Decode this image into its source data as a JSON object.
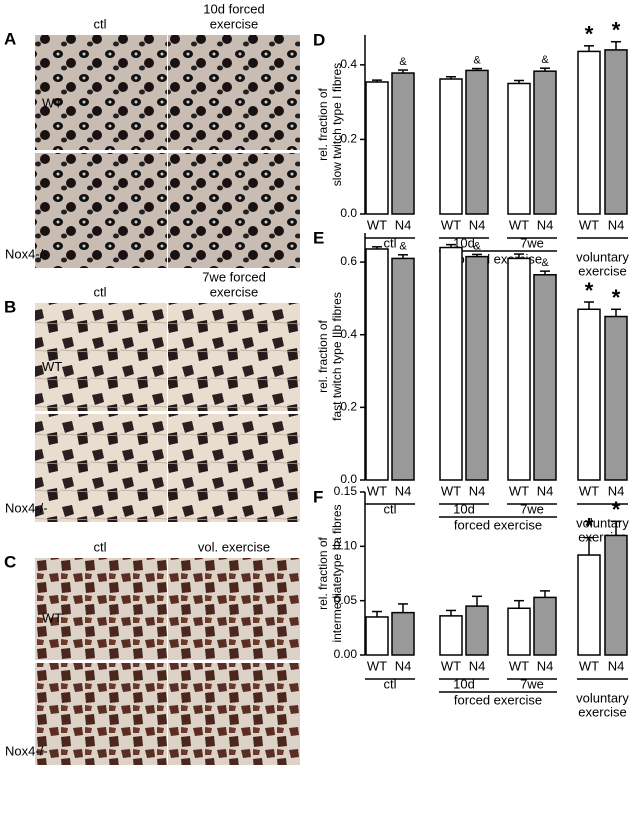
{
  "image_panels": [
    {
      "letter": "A",
      "columns": [
        [
          "ctl"
        ],
        [
          "10d forced",
          "exercise"
        ]
      ],
      "rows": [
        "WT",
        "Nox4-/-"
      ]
    },
    {
      "letter": "B",
      "columns": [
        [
          "ctl"
        ],
        [
          "7we forced",
          "exercise"
        ]
      ],
      "rows": [
        "WT",
        "Nox4-/-"
      ]
    },
    {
      "letter": "C",
      "columns": [
        [
          "ctl"
        ],
        [
          "vol. exercise"
        ]
      ],
      "rows": [
        "WT",
        "Nox4-/-"
      ]
    }
  ],
  "chart_data": [
    {
      "type": "bar",
      "panel": "D",
      "ylabel": [
        "rel. fraction of",
        "slow twitch type I  fibres"
      ],
      "categories": [
        "WT",
        "N4",
        "WT",
        "N4",
        "WT",
        "N4",
        "WT",
        "N4"
      ],
      "values": [
        0.354,
        0.378,
        0.362,
        0.385,
        0.35,
        0.383,
        0.436,
        0.44
      ],
      "errors": [
        0.005,
        0.008,
        0.006,
        0.005,
        0.008,
        0.008,
        0.015,
        0.022
      ],
      "colors": [
        "#ffffff",
        "#999999",
        "#ffffff",
        "#999999",
        "#ffffff",
        "#999999",
        "#ffffff",
        "#999999"
      ],
      "annotations": [
        {
          "index": 1,
          "text": "&"
        },
        {
          "index": 3,
          "text": "&"
        },
        {
          "index": 5,
          "text": "&"
        },
        {
          "index": 6,
          "text": "*"
        },
        {
          "index": 7,
          "text": "*"
        }
      ],
      "groups": [
        {
          "label": [
            "ctl"
          ],
          "bars": [
            0,
            1
          ]
        },
        {
          "label": [
            "10d"
          ],
          "bars": [
            2,
            3
          ]
        },
        {
          "label": [
            "7we"
          ],
          "bars": [
            4,
            5
          ]
        },
        {
          "label": [
            "voluntary",
            "exercise"
          ],
          "bars": [
            6,
            7
          ]
        }
      ],
      "supergroup": {
        "label": "forced exercise",
        "groups": [
          1,
          2
        ]
      },
      "ylim": [
        0,
        0.48
      ],
      "yticks": [
        {
          "value": 0,
          "label": "0.0"
        },
        0.2,
        0.4
      ]
    },
    {
      "type": "bar",
      "panel": "E",
      "ylabel": [
        "rel. fraction of",
        "fast twitch type IIb  fibres"
      ],
      "categories": [
        "WT",
        "N4",
        "WT",
        "N4",
        "WT",
        "N4",
        "WT",
        "N4"
      ],
      "values": [
        0.636,
        0.61,
        0.64,
        0.615,
        0.61,
        0.565,
        0.47,
        0.45
      ],
      "errors": [
        0.006,
        0.01,
        0.008,
        0.006,
        0.012,
        0.01,
        0.02,
        0.02
      ],
      "colors": [
        "#ffffff",
        "#999999",
        "#ffffff",
        "#999999",
        "#ffffff",
        "#999999",
        "#ffffff",
        "#999999"
      ],
      "annotations": [
        {
          "index": 1,
          "text": "&"
        },
        {
          "index": 3,
          "text": "&"
        },
        {
          "index": 5,
          "text": "&"
        },
        {
          "index": 6,
          "text": "*"
        },
        {
          "index": 7,
          "text": "*"
        }
      ],
      "groups": [
        {
          "label": [
            "ctl"
          ],
          "bars": [
            0,
            1
          ]
        },
        {
          "label": [
            "10d"
          ],
          "bars": [
            2,
            3
          ]
        },
        {
          "label": [
            "7we"
          ],
          "bars": [
            4,
            5
          ]
        },
        {
          "label": [
            "voluntary",
            "exercise"
          ],
          "bars": [
            6,
            7
          ]
        }
      ],
      "supergroup": {
        "label": "forced exercise",
        "groups": [
          1,
          2
        ]
      },
      "ylim": [
        0,
        0.68
      ],
      "yticks": [
        {
          "value": 0,
          "label": "0.0"
        },
        0.2,
        0.4,
        0.6
      ]
    },
    {
      "type": "bar",
      "panel": "F",
      "ylabel": [
        "rel. fraction of",
        "intermediatetype IIa  fibres"
      ],
      "categories": [
        "WT",
        "N4",
        "WT",
        "N4",
        "WT",
        "N4",
        "WT",
        "N4"
      ],
      "values": [
        0.035,
        0.039,
        0.036,
        0.045,
        0.043,
        0.053,
        0.092,
        0.11
      ],
      "errors": [
        0.005,
        0.008,
        0.005,
        0.009,
        0.007,
        0.006,
        0.016,
        0.013
      ],
      "colors": [
        "#ffffff",
        "#999999",
        "#ffffff",
        "#999999",
        "#ffffff",
        "#999999",
        "#ffffff",
        "#999999"
      ],
      "annotations": [
        {
          "index": 6,
          "text": "*"
        },
        {
          "index": 7,
          "text": "*"
        }
      ],
      "groups": [
        {
          "label": [
            "ctl"
          ],
          "bars": [
            0,
            1
          ]
        },
        {
          "label": [
            "10d"
          ],
          "bars": [
            2,
            3
          ]
        },
        {
          "label": [
            "7we"
          ],
          "bars": [
            4,
            5
          ]
        },
        {
          "label": [
            "voluntary",
            "exercise"
          ],
          "bars": [
            6,
            7
          ]
        }
      ],
      "supergroup": {
        "label": "forced exercise",
        "groups": [
          1,
          2
        ]
      },
      "ylim": [
        0,
        0.15
      ],
      "yticks": [
        {
          "value": 0,
          "label": "0.00"
        },
        0.05,
        {
          "value": 0.1,
          "label": "0.10"
        },
        0.15
      ]
    }
  ]
}
